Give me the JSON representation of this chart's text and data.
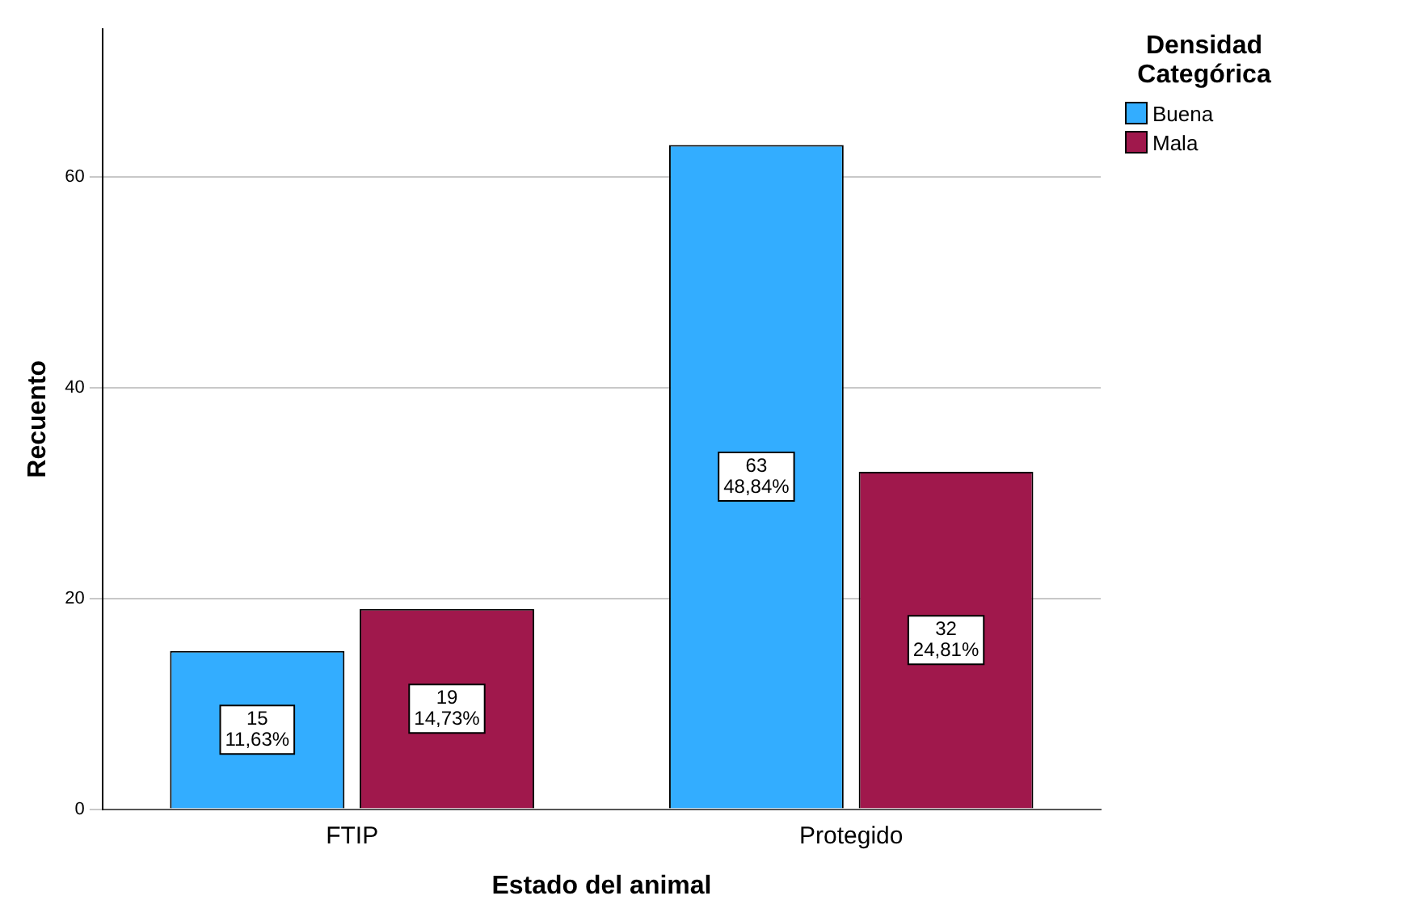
{
  "chart_data": {
    "type": "bar",
    "xlabel": "Estado del animal",
    "ylabel": "Recuento",
    "legend_title": "Densidad Categórica",
    "categories": [
      "FTIP",
      "Protegido"
    ],
    "series": [
      {
        "name": "Buena",
        "color": "#33adff",
        "values": [
          15,
          63
        ],
        "value_labels": [
          "15\n11,63%",
          "63\n48,84%"
        ]
      },
      {
        "name": "Mala",
        "color": "#a0184c",
        "values": [
          19,
          32
        ],
        "value_labels": [
          "19\n14,73%",
          "32\n24,81%"
        ]
      }
    ],
    "ylim": [
      0,
      74
    ],
    "yticks": [
      0,
      20,
      40,
      60
    ],
    "grid": "y",
    "legend": "top right"
  }
}
